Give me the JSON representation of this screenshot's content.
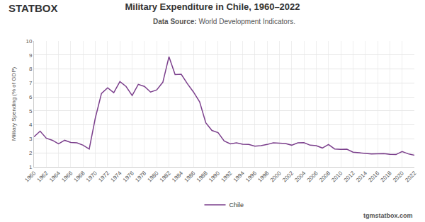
{
  "chart_data": {
    "type": "line",
    "title": "Military Expenditure in Chile, 1960–2022",
    "subtitle": "Data Source: World Development Indicators.",
    "y_label": "Military Spending (% of GDP)",
    "annotations": [
      "STATBOX",
      "tgmstatbox.com"
    ],
    "x": [
      1960,
      1961,
      1962,
      1963,
      1964,
      1965,
      1966,
      1967,
      1968,
      1969,
      1970,
      1971,
      1972,
      1973,
      1974,
      1975,
      1976,
      1977,
      1978,
      1979,
      1980,
      1981,
      1982,
      1983,
      1984,
      1985,
      1986,
      1987,
      1988,
      1989,
      1990,
      1991,
      1992,
      1993,
      1994,
      1995,
      1996,
      1997,
      1998,
      1999,
      2000,
      2001,
      2002,
      2003,
      2004,
      2005,
      2006,
      2007,
      2008,
      2009,
      2010,
      2011,
      2012,
      2013,
      2014,
      2015,
      2016,
      2017,
      2018,
      2019,
      2020,
      2021,
      2022
    ],
    "series": [
      {
        "name": "Chile",
        "color": "#7b3f8c",
        "values": [
          3.15,
          3.55,
          3.05,
          2.9,
          2.65,
          2.9,
          2.75,
          2.72,
          2.55,
          2.27,
          4.5,
          6.25,
          6.65,
          6.3,
          7.1,
          6.75,
          6.1,
          6.9,
          6.75,
          6.35,
          6.5,
          7.05,
          8.88,
          7.6,
          7.62,
          6.95,
          6.35,
          5.65,
          4.15,
          3.6,
          3.45,
          2.85,
          2.65,
          2.72,
          2.62,
          2.6,
          2.48,
          2.52,
          2.6,
          2.72,
          2.7,
          2.67,
          2.55,
          2.72,
          2.73,
          2.55,
          2.52,
          2.35,
          2.6,
          2.28,
          2.25,
          2.26,
          2.05,
          2.0,
          1.98,
          1.92,
          1.94,
          1.95,
          1.9,
          1.88,
          2.1,
          1.93,
          1.83
        ]
      }
    ],
    "xlim": [
      1960,
      2022
    ],
    "xticks": [
      1960,
      1962,
      1964,
      1966,
      1968,
      1970,
      1972,
      1974,
      1976,
      1978,
      1980,
      1982,
      1984,
      1986,
      1988,
      1990,
      1992,
      1994,
      1996,
      1998,
      2000,
      2002,
      2004,
      2006,
      2008,
      2010,
      2012,
      2014,
      2016,
      2018,
      2020,
      2022
    ],
    "ylim": [
      1,
      10
    ],
    "yticks": [
      1,
      2,
      3,
      4,
      5,
      6,
      7,
      8,
      9,
      10
    ],
    "grid": true,
    "legend": "bottom"
  }
}
